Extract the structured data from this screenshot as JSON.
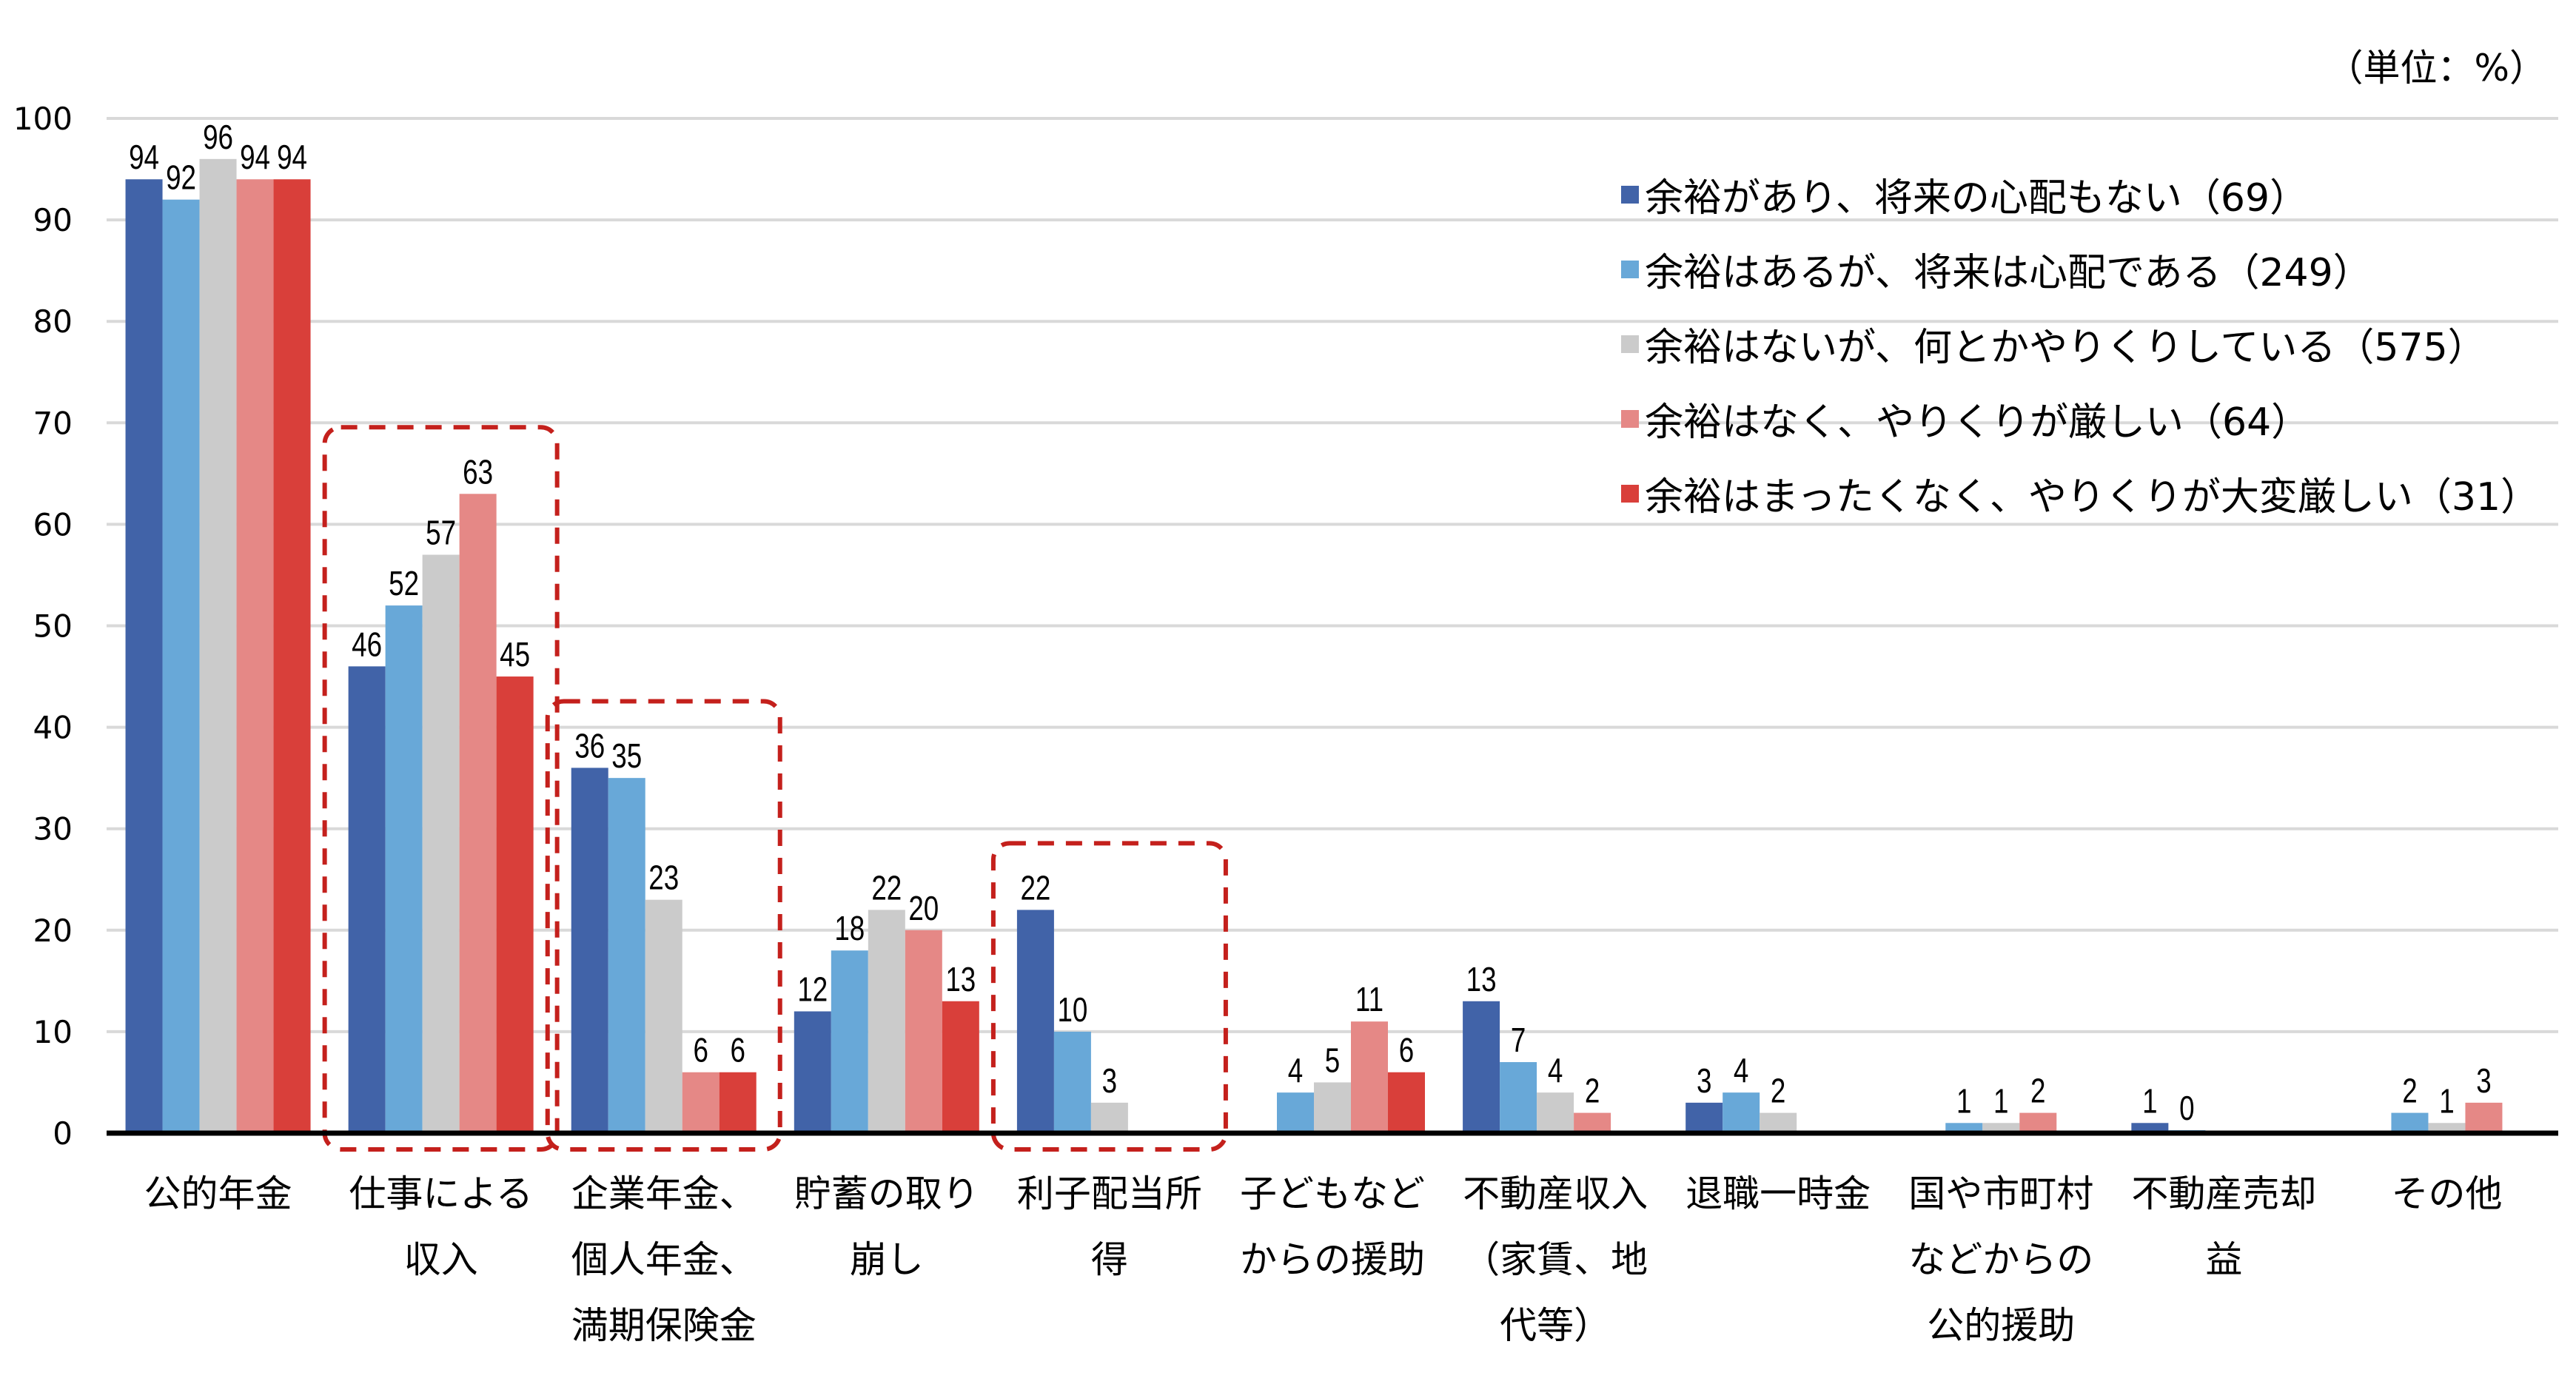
{
  "chart_data": {
    "type": "bar",
    "unit_note": "（単位：%）",
    "ylim": [
      0,
      100
    ],
    "yticks": [
      0,
      10,
      20,
      30,
      40,
      50,
      60,
      70,
      80,
      90,
      100
    ],
    "grid": true,
    "legend_position": "top-right",
    "categories": [
      [
        "公的年金"
      ],
      [
        "仕事による",
        "収入"
      ],
      [
        "企業年金、",
        "個人年金、",
        "満期保険金"
      ],
      [
        "貯蓄の取り",
        "崩し"
      ],
      [
        "利子配当所",
        "得"
      ],
      [
        "子どもなど",
        "からの援助"
      ],
      [
        "不動産収入",
        "（家賃、地",
        "代等）"
      ],
      [
        "退職一時金"
      ],
      [
        "国や市町村",
        "などからの",
        "公的援助"
      ],
      [
        "不動産売却",
        "益"
      ],
      [
        "その他"
      ]
    ],
    "series": [
      {
        "name": "余裕があり、将来の心配もない（69）",
        "color": "#4163a8",
        "values": [
          94,
          46,
          36,
          12,
          22,
          null,
          13,
          3,
          null,
          1,
          null
        ]
      },
      {
        "name": "余裕はあるが、将来は心配である（249）",
        "color": "#68a8d8",
        "values": [
          92,
          52,
          35,
          18,
          10,
          4,
          7,
          4,
          1,
          0,
          2
        ]
      },
      {
        "name": "余裕はないが、何とかやりくりしている（575）",
        "color": "#cbcbcb",
        "values": [
          96,
          57,
          23,
          22,
          3,
          5,
          4,
          2,
          1,
          null,
          1
        ]
      },
      {
        "name": "余裕はなく、やりくりが厳しい（64）",
        "color": "#e58886",
        "values": [
          94,
          63,
          6,
          20,
          null,
          11,
          2,
          null,
          2,
          null,
          3
        ]
      },
      {
        "name": "余裕はまったくなく、やりくりが大変厳しい（31）",
        "color": "#d93f3a",
        "values": [
          94,
          45,
          6,
          13,
          null,
          6,
          null,
          null,
          null,
          null,
          null
        ]
      }
    ],
    "highlighted_categories": [
      1,
      2,
      4
    ],
    "highlight_color": "#c4201c"
  }
}
